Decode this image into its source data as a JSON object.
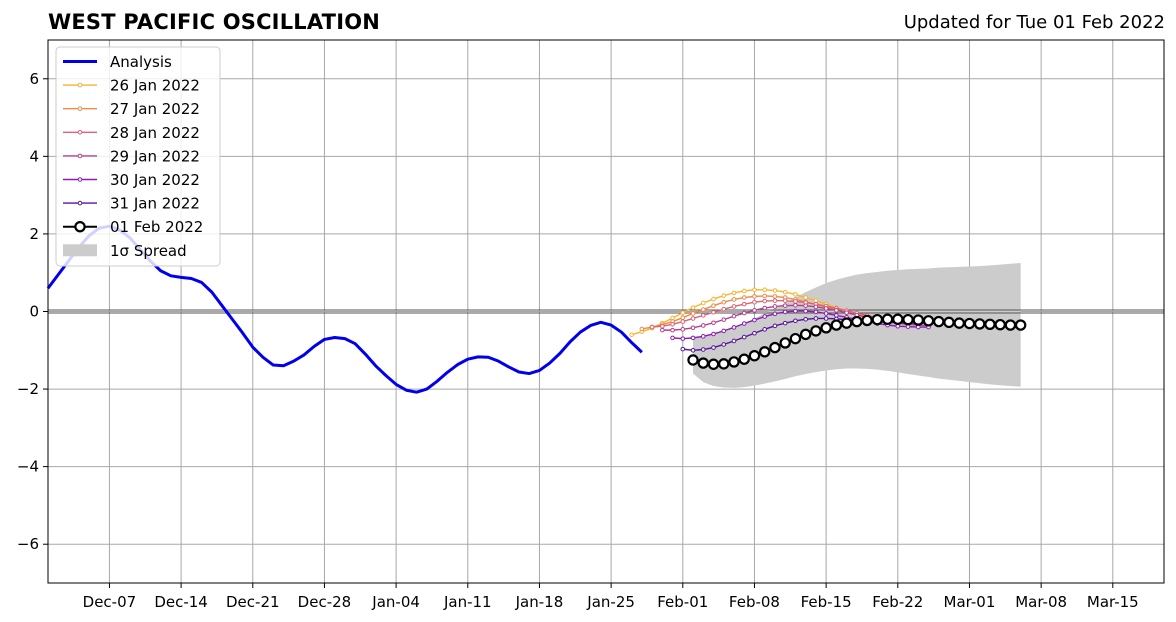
{
  "chart_data": {
    "type": "line",
    "title": "WEST PACIFIC OSCILLATION",
    "subtitle": "Updated for Tue 01 Feb 2022",
    "ylim": [
      -7,
      7
    ],
    "yticks": [
      -6,
      -4,
      -2,
      0,
      2,
      4,
      6
    ],
    "xlim": [
      "2021-12-01",
      "2022-03-20"
    ],
    "xtick_dates": [
      "2021-12-07",
      "2021-12-14",
      "2021-12-21",
      "2021-12-28",
      "2022-01-04",
      "2022-01-11",
      "2022-01-18",
      "2022-01-25",
      "2022-02-01",
      "2022-02-08",
      "2022-02-15",
      "2022-02-22",
      "2022-03-01",
      "2022-03-08",
      "2022-03-15"
    ],
    "xtick_labels": [
      "Dec-07",
      "Dec-14",
      "Dec-21",
      "Dec-28",
      "Jan-04",
      "Jan-11",
      "Jan-18",
      "Jan-25",
      "Feb-01",
      "Feb-08",
      "Feb-15",
      "Feb-22",
      "Mar-01",
      "Mar-08",
      "Mar-15"
    ],
    "grid": true,
    "zero_line": true,
    "legend_position": "top-left",
    "analysis": {
      "name": "Analysis",
      "color": "#0000ee",
      "start_date": "2021-12-01",
      "values": [
        0.6,
        0.95,
        1.3,
        1.65,
        1.95,
        2.15,
        2.2,
        2.1,
        1.9,
        1.6,
        1.3,
        1.05,
        0.92,
        0.88,
        0.85,
        0.75,
        0.5,
        0.15,
        -0.2,
        -0.55,
        -0.92,
        -1.18,
        -1.38,
        -1.4,
        -1.28,
        -1.12,
        -0.9,
        -0.72,
        -0.67,
        -0.7,
        -0.83,
        -1.1,
        -1.4,
        -1.65,
        -1.88,
        -2.03,
        -2.08,
        -2.0,
        -1.8,
        -1.57,
        -1.37,
        -1.23,
        -1.17,
        -1.18,
        -1.28,
        -1.43,
        -1.56,
        -1.6,
        -1.52,
        -1.33,
        -1.08,
        -0.78,
        -0.53,
        -0.36,
        -0.28,
        -0.35,
        -0.53,
        -0.8,
        -1.05
      ]
    },
    "forecasts": [
      {
        "name": "26 Jan 2022",
        "color": "#f6b431",
        "start_date": "2022-01-27",
        "values": [
          -0.6,
          -0.52,
          -0.43,
          -0.3,
          -0.17,
          -0.03,
          0.1,
          0.22,
          0.32,
          0.41,
          0.48,
          0.53,
          0.56,
          0.56,
          0.54,
          0.5,
          0.44,
          0.36,
          0.28,
          0.19,
          0.1,
          0.02,
          -0.05,
          -0.11,
          -0.16,
          -0.2,
          -0.23,
          -0.26
        ]
      },
      {
        "name": "27 Jan 2022",
        "color": "#ef8a49",
        "start_date": "2022-01-28",
        "values": [
          -0.45,
          -0.4,
          -0.34,
          -0.26,
          -0.16,
          -0.05,
          0.05,
          0.15,
          0.24,
          0.31,
          0.36,
          0.39,
          0.4,
          0.39,
          0.36,
          0.31,
          0.25,
          0.18,
          0.11,
          0.04,
          -0.03,
          -0.09,
          -0.14,
          -0.18,
          -0.22,
          -0.25,
          -0.27
        ]
      },
      {
        "name": "28 Jan 2022",
        "color": "#dc6374",
        "start_date": "2022-01-29",
        "values": [
          -0.4,
          -0.38,
          -0.33,
          -0.26,
          -0.18,
          -0.1,
          -0.02,
          0.06,
          0.13,
          0.19,
          0.24,
          0.27,
          0.28,
          0.28,
          0.26,
          0.23,
          0.19,
          0.14,
          0.08,
          0.02,
          -0.04,
          -0.1,
          -0.15,
          -0.2,
          -0.24,
          -0.27,
          -0.3
        ]
      },
      {
        "name": "29 Jan 2022",
        "color": "#b53f8e",
        "start_date": "2022-01-30",
        "values": [
          -0.48,
          -0.48,
          -0.46,
          -0.42,
          -0.36,
          -0.29,
          -0.21,
          -0.12,
          -0.04,
          0.03,
          0.09,
          0.13,
          0.15,
          0.16,
          0.15,
          0.12,
          0.08,
          0.03,
          -0.03,
          -0.09,
          -0.15,
          -0.21,
          -0.26,
          -0.3,
          -0.33,
          -0.35,
          -0.36
        ]
      },
      {
        "name": "30 Jan 2022",
        "color": "#8a1db0",
        "start_date": "2022-01-31",
        "values": [
          -0.68,
          -0.7,
          -0.68,
          -0.64,
          -0.58,
          -0.5,
          -0.41,
          -0.31,
          -0.22,
          -0.13,
          -0.06,
          -0.01,
          0.01,
          0.01,
          -0.01,
          -0.05,
          -0.1,
          -0.15,
          -0.21,
          -0.26,
          -0.31,
          -0.35,
          -0.38,
          -0.39,
          -0.4,
          -0.4
        ]
      },
      {
        "name": "31 Jan 2022",
        "color": "#59139a",
        "start_date": "2022-02-01",
        "values": [
          -0.97,
          -1.0,
          -0.98,
          -0.93,
          -0.85,
          -0.76,
          -0.66,
          -0.56,
          -0.46,
          -0.37,
          -0.3,
          -0.24,
          -0.2,
          -0.18,
          -0.18,
          -0.19,
          -0.21,
          -0.23,
          -0.25,
          -0.27,
          -0.28,
          -0.29,
          -0.3,
          -0.3,
          -0.3
        ]
      }
    ],
    "latest": {
      "name": "01 Feb 2022",
      "color": "#000000",
      "start_date": "2022-02-02",
      "values": [
        -1.25,
        -1.33,
        -1.36,
        -1.35,
        -1.3,
        -1.23,
        -1.14,
        -1.04,
        -0.93,
        -0.81,
        -0.7,
        -0.59,
        -0.5,
        -0.42,
        -0.35,
        -0.3,
        -0.26,
        -0.23,
        -0.21,
        -0.2,
        -0.2,
        -0.21,
        -0.22,
        -0.24,
        -0.26,
        -0.28,
        -0.3,
        -0.31,
        -0.32,
        -0.33,
        -0.34,
        -0.35,
        -0.35
      ]
    },
    "spread": {
      "name": "1σ Spread",
      "color": "#cccccc",
      "start_date": "2022-02-02",
      "upper": [
        -0.7,
        -0.62,
        -0.55,
        -0.48,
        -0.4,
        -0.3,
        -0.18,
        -0.05,
        0.08,
        0.22,
        0.36,
        0.5,
        0.62,
        0.73,
        0.82,
        0.89,
        0.95,
        0.99,
        1.02,
        1.05,
        1.07,
        1.09,
        1.1,
        1.11,
        1.13,
        1.14,
        1.15,
        1.16,
        1.17,
        1.19,
        1.21,
        1.23,
        1.25
      ],
      "lower": [
        -1.6,
        -1.82,
        -1.92,
        -1.96,
        -1.97,
        -1.95,
        -1.91,
        -1.86,
        -1.8,
        -1.74,
        -1.67,
        -1.61,
        -1.56,
        -1.52,
        -1.49,
        -1.47,
        -1.47,
        -1.48,
        -1.5,
        -1.53,
        -1.57,
        -1.61,
        -1.65,
        -1.69,
        -1.73,
        -1.76,
        -1.79,
        -1.82,
        -1.85,
        -1.88,
        -1.9,
        -1.92,
        -1.94
      ]
    },
    "legend": [
      "Analysis",
      "26 Jan 2022",
      "27 Jan 2022",
      "28 Jan 2022",
      "29 Jan 2022",
      "30 Jan 2022",
      "31 Jan 2022",
      "01 Feb 2022",
      "1σ Spread"
    ]
  }
}
